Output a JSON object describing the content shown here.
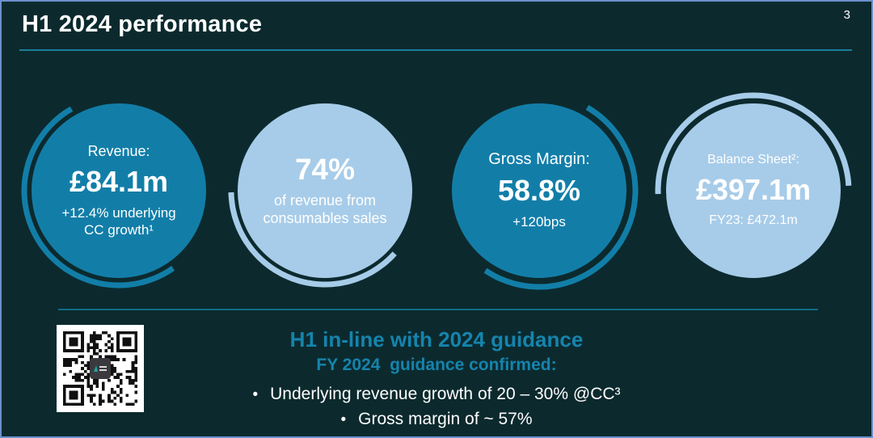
{
  "slide": {
    "title": "H1 2024 performance",
    "page_number": "3"
  },
  "metrics": [
    {
      "id": "revenue",
      "label": "Revenue:",
      "value": "£84.1m",
      "note": "+12.4% underlying\nCC growth¹"
    },
    {
      "id": "consumables",
      "value": "74%",
      "note": "of revenue from\nconsumables sales"
    },
    {
      "id": "gross-margin",
      "label": "Gross Margin:",
      "value": "58.8%",
      "note": "+120bps"
    },
    {
      "id": "balance-sheet",
      "label": "Balance Sheet²:",
      "value": "£397.1m",
      "note": "FY23: £472.1m"
    }
  ],
  "guidance": {
    "headline": "H1 in-line with 2024 guidance",
    "subheadline": "FY 2024  guidance confirmed:",
    "bullet_char": "•",
    "bullets": [
      "Underlying revenue growth of 20 – 30% @CC³",
      "Gross margin of ~ 57%"
    ]
  },
  "qr": {
    "name": "qr-code"
  },
  "colors": {
    "background": "#0c2a2e",
    "frame_border": "#6a90cc",
    "circle_teal": "#127ea8",
    "circle_light": "#a7cce9",
    "heading_teal": "#1584ad",
    "title_rule": "#1b7e9c",
    "divider": "#0f6d83",
    "qr_teal": "#1fa5a0"
  }
}
